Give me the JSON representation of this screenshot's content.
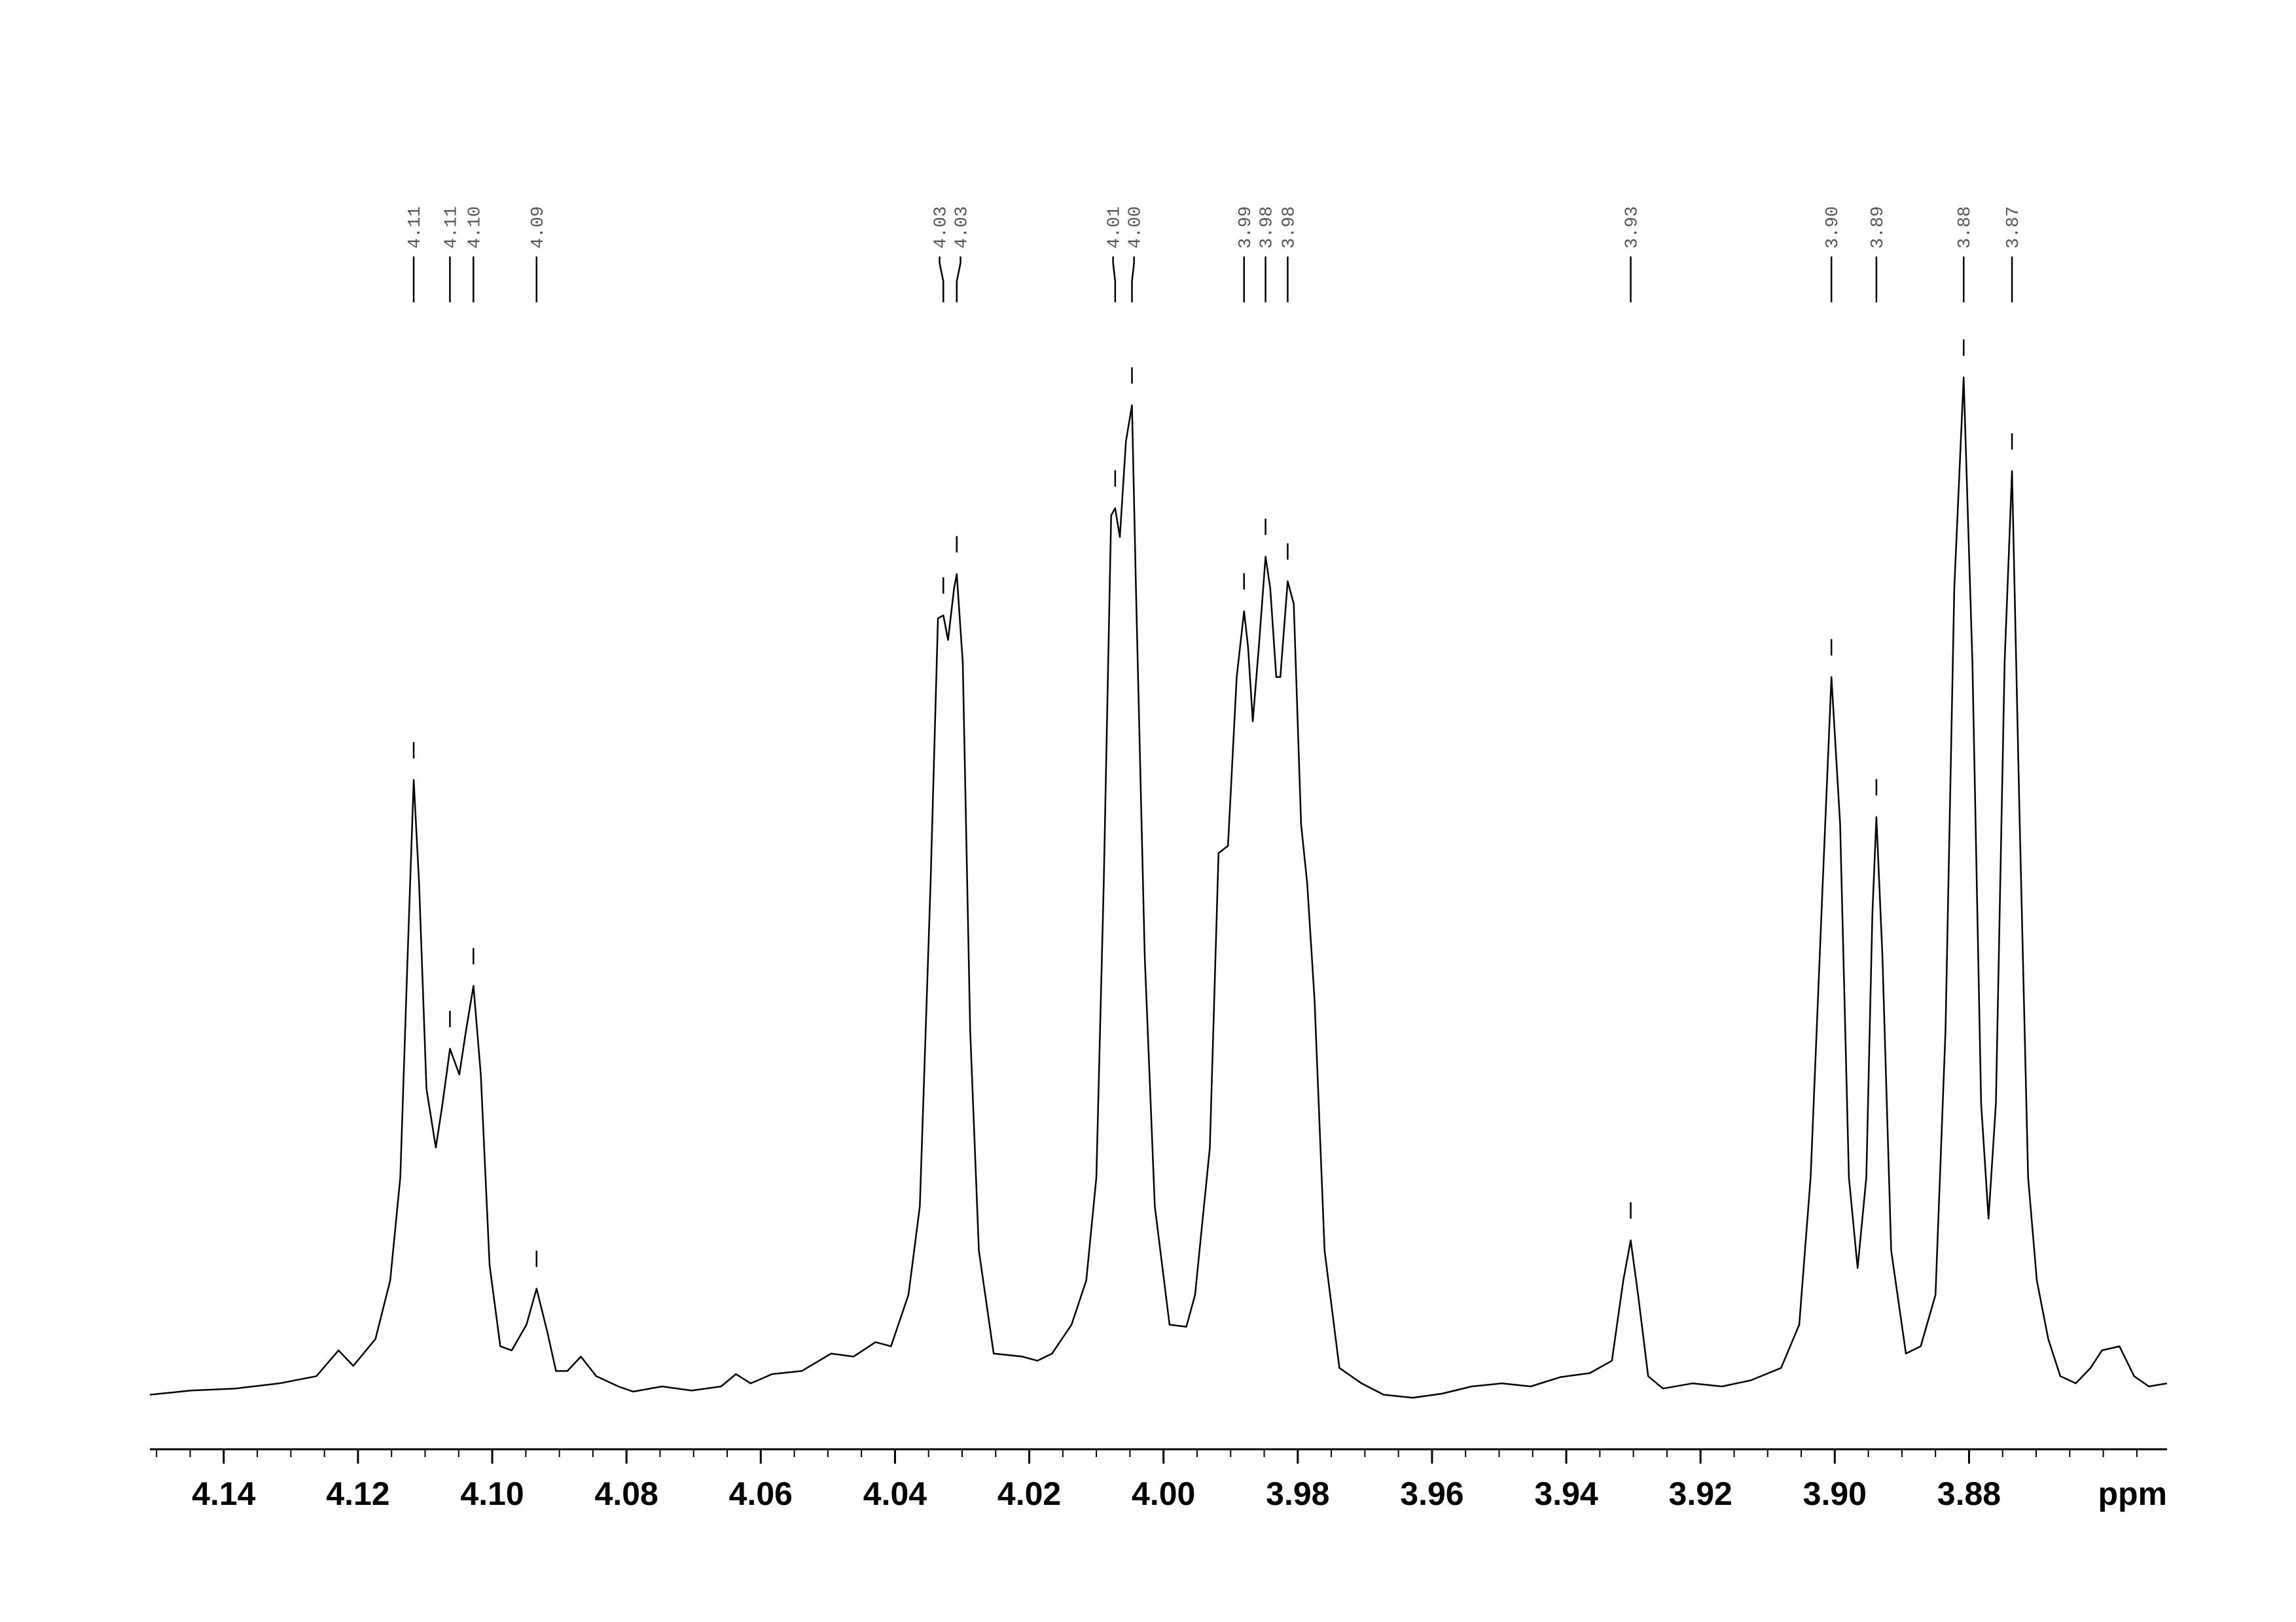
{
  "chart_data": {
    "type": "line",
    "x_label": "ppm",
    "color": "#000000",
    "xlim": [
      4.151,
      3.8505
    ],
    "ylim": [
      -5,
      105
    ],
    "xticks": [
      4.14,
      4.12,
      {
        "value": 4.1,
        "label": "4.10"
      },
      4.08,
      4.06,
      4.04,
      4.02,
      {
        "value": 4.0,
        "label": "4.00"
      },
      3.98,
      3.96,
      3.94,
      3.92,
      {
        "value": 3.9,
        "label": "3.90"
      },
      3.88
    ],
    "minor_xticks": [
      4.15,
      4.145,
      4.14,
      4.135,
      4.13,
      4.125,
      4.12,
      4.115,
      4.11,
      4.105,
      4.1,
      4.095,
      4.09,
      4.085,
      4.08,
      4.075,
      4.07,
      4.065,
      4.06,
      4.055,
      4.05,
      4.045,
      4.04,
      4.035,
      4.03,
      4.025,
      4.02,
      4.015,
      4.01,
      4.005,
      4.0,
      3.995,
      3.99,
      3.985,
      3.98,
      3.975,
      3.97,
      3.965,
      3.96,
      3.955,
      3.95,
      3.945,
      3.94,
      3.935,
      3.93,
      3.925,
      3.92,
      3.915,
      3.91,
      3.905,
      3.9,
      3.895,
      3.89,
      3.885,
      3.88,
      3.875,
      3.87,
      3.865,
      3.86,
      3.855
    ],
    "peaks": [
      {
        "value": 4.1117,
        "label": "4.11"
      },
      {
        "value": 4.1063,
        "label": "4.11"
      },
      {
        "value": 4.1028,
        "label": "4.10"
      },
      {
        "value": 4.0934,
        "label": "4.09"
      },
      {
        "value": 4.0328,
        "label": "4.03"
      },
      {
        "value": 4.0308,
        "label": "4.03"
      },
      {
        "value": 4.0072,
        "label": "4.01"
      },
      {
        "value": 4.0047,
        "label": "4.00"
      },
      {
        "value": 3.988,
        "label": "3.99"
      },
      {
        "value": 3.9848,
        "label": "3.98"
      },
      {
        "value": 3.9815,
        "label": "3.98"
      },
      {
        "value": 3.9304,
        "label": "3.93"
      },
      {
        "value": 3.9005,
        "label": "3.90"
      },
      {
        "value": 3.8938,
        "label": "3.89"
      },
      {
        "value": 3.8808,
        "label": "3.88"
      },
      {
        "value": 3.8736,
        "label": "3.87"
      }
    ],
    "x": [
      4.151,
      4.1449,
      4.1383,
      4.1317,
      4.1262,
      4.1229,
      4.1207,
      4.1174,
      4.1152,
      4.1137,
      4.1126,
      4.1117,
      4.1109,
      4.1098,
      4.1084,
      4.1074,
      4.1063,
      4.1049,
      4.1039,
      4.1028,
      4.1017,
      4.1004,
      4.0988,
      4.0971,
      4.0949,
      4.0934,
      4.0918,
      4.0905,
      4.0888,
      4.0868,
      4.0845,
      4.0812,
      4.079,
      4.0747,
      4.0703,
      4.0659,
      4.0637,
      4.0615,
      4.0583,
      4.0539,
      4.0495,
      4.0462,
      4.0429,
      4.0406,
      4.038,
      4.0363,
      4.0347,
      4.0336,
      4.0328,
      4.0321,
      4.0312,
      4.0308,
      4.0299,
      4.0288,
      4.0275,
      4.0253,
      4.021,
      4.0188,
      4.0166,
      4.0137,
      4.0115,
      4.01,
      4.0089,
      4.0078,
      4.0072,
      4.0065,
      4.0056,
      4.0047,
      4.0041,
      4.0028,
      4.0013,
      3.9991,
      3.9966,
      3.9953,
      3.9931,
      3.9918,
      3.9904,
      3.9891,
      3.988,
      3.9874,
      3.9867,
      3.9858,
      3.9848,
      3.9841,
      3.9832,
      3.9826,
      3.9815,
      3.9806,
      3.9795,
      3.9786,
      3.9775,
      3.976,
      3.9738,
      3.9705,
      3.9672,
      3.9629,
      3.9585,
      3.9541,
      3.9496,
      3.9453,
      3.9409,
      3.9365,
      3.9332,
      3.9315,
      3.9304,
      3.9293,
      3.9278,
      3.9256,
      3.9212,
      3.9168,
      3.9125,
      3.908,
      3.9053,
      3.9036,
      3.9018,
      3.9005,
      3.8992,
      3.8979,
      3.8966,
      3.8953,
      3.8944,
      3.8938,
      3.8929,
      3.8916,
      3.8894,
      3.8872,
      3.885,
      3.8835,
      3.8822,
      3.8808,
      3.8795,
      3.8782,
      3.8771,
      3.876,
      3.8747,
      3.8736,
      3.8725,
      3.8712,
      3.8699,
      3.8682,
      3.8664,
      3.8641,
      3.8619,
      3.8602,
      3.8576,
      3.8554,
      3.8532,
      3.8505
    ],
    "values": [
      0.3,
      0.7,
      0.9,
      1.4,
      2.1,
      4.6,
      3.1,
      5.7,
      11.4,
      21.4,
      42.9,
      60,
      50,
      30,
      24.3,
      28.6,
      33.9,
      31.4,
      35.7,
      40,
      31.4,
      12.9,
      5,
      4.6,
      7.1,
      10.6,
      6.4,
      2.6,
      2.6,
      4,
      2.1,
      1.1,
      0.6,
      1.1,
      0.7,
      1.1,
      2.3,
      1.4,
      2.3,
      2.6,
      4.3,
      4,
      5.4,
      5,
      10,
      18.6,
      50,
      75.7,
      76,
      73.6,
      78.6,
      80,
      71.4,
      35.7,
      14.3,
      4.3,
      4,
      3.6,
      4.3,
      7.1,
      11.4,
      21.4,
      50,
      85.7,
      86.4,
      83.6,
      92.9,
      96.4,
      78.6,
      42.9,
      18.6,
      7.1,
      6.9,
      10,
      24.3,
      52.9,
      53.6,
      70,
      76.4,
      72.9,
      65.7,
      72.9,
      81.7,
      78.6,
      70,
      70,
      79.3,
      77.1,
      55.7,
      50,
      38.6,
      14.3,
      2.9,
      1.4,
      0.3,
      0,
      0.4,
      1.1,
      1.4,
      1.1,
      2,
      2.4,
      3.6,
      11.4,
      15.3,
      10,
      2.1,
      0.9,
      1.4,
      1.1,
      1.7,
      2.9,
      7.1,
      21.4,
      50,
      70,
      55.7,
      21.4,
      12.6,
      21.4,
      47.1,
      56.4,
      42.9,
      14.3,
      4.3,
      5,
      10,
      35.7,
      78.6,
      99.1,
      71.4,
      28.6,
      17.4,
      28.6,
      71.4,
      90,
      57.1,
      21.4,
      11.4,
      5.7,
      2.1,
      1.4,
      2.9,
      4.6,
      5,
      2.1,
      1.1,
      1.4
    ]
  }
}
